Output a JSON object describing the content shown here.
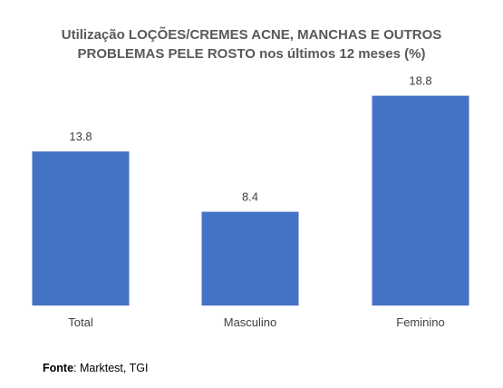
{
  "chart_data": {
    "type": "bar",
    "title_lines": [
      "Utilização LOÇÕES/CREMES ACNE, MANCHAS E OUTROS",
      "PROBLEMAS PELE ROSTO nos últimos 12 meses (%)"
    ],
    "categories": [
      "Total",
      "Masculino",
      "Feminino"
    ],
    "values": [
      13.8,
      8.4,
      18.8
    ],
    "value_labels": [
      "13.8",
      "8.4",
      "18.8"
    ],
    "ylim": [
      0,
      20
    ],
    "grid": false,
    "legend": "none",
    "bar_color": "#4472C4",
    "label_color": "#404040"
  },
  "source": {
    "label": "Fonte",
    "text": ": Marktest, TGI"
  }
}
